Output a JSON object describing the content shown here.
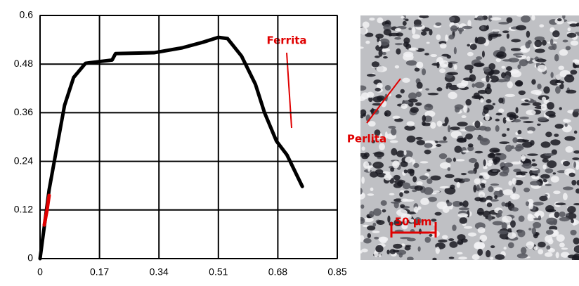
{
  "chart_data": {
    "type": "line",
    "series": [
      {
        "color": "#000000",
        "x": [
          0,
          0.026,
          0.046,
          0.07,
          0.096,
          0.13,
          0.206,
          0.216,
          0.326,
          0.406,
          0.466,
          0.51,
          0.536,
          0.576,
          0.616,
          0.642,
          0.676,
          0.706,
          0.75
        ],
        "values": [
          0,
          0.17,
          0.265,
          0.378,
          0.447,
          0.482,
          0.49,
          0.506,
          0.508,
          0.52,
          0.534,
          0.546,
          0.543,
          0.5,
          0.43,
          0.36,
          0.29,
          0.256,
          0.178
        ]
      },
      {
        "color": "#e00000",
        "x": [
          0.012,
          0.02,
          0.026
        ],
        "values": [
          0.083,
          0.12,
          0.156
        ]
      }
    ],
    "xlim": [
      0,
      0.85
    ],
    "xticks": [
      0,
      0.17,
      0.34,
      0.51,
      0.68,
      0.85
    ],
    "ylim": [
      0,
      0.6
    ],
    "yticks": [
      0,
      0.12,
      0.24,
      0.36,
      0.48,
      0.6
    ],
    "grid": true,
    "annotations": [
      "Ferrita",
      "Perlita"
    ]
  },
  "micrograph": {
    "scale_bar": "50 µm"
  }
}
